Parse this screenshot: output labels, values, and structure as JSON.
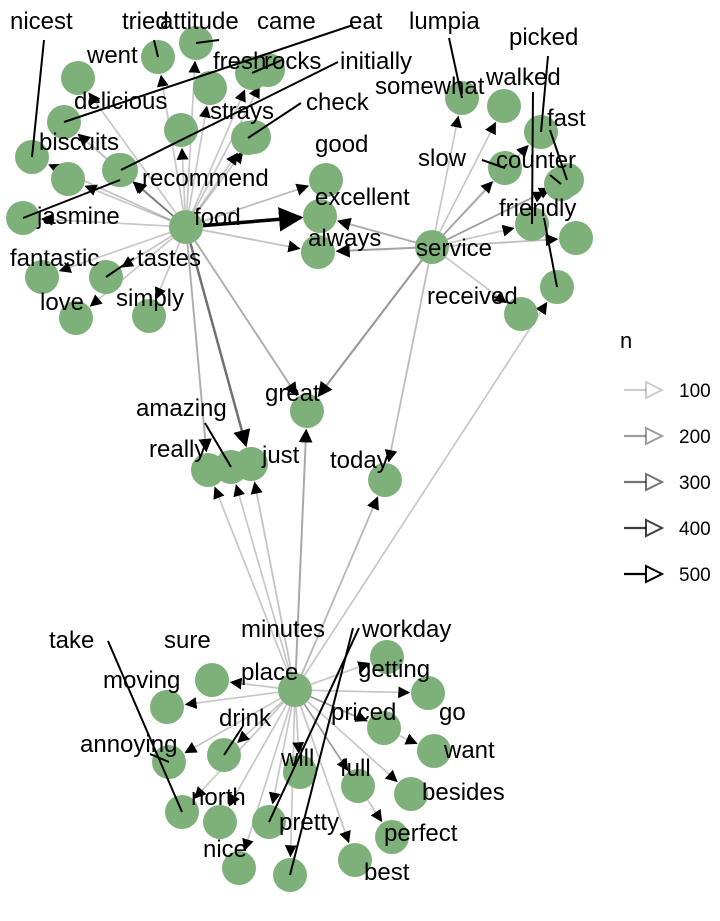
{
  "colors": {
    "node": "#7eb07a",
    "edge": "#000000",
    "text": "#000000",
    "background": "#ffffff"
  },
  "legend": {
    "title": "n",
    "items": [
      {
        "label": "100",
        "n": 100,
        "opacity": 0.2
      },
      {
        "label": "200",
        "n": 200,
        "opacity": 0.38
      },
      {
        "label": "300",
        "n": 300,
        "opacity": 0.55
      },
      {
        "label": "400",
        "n": 400,
        "opacity": 0.75
      },
      {
        "label": "500",
        "n": 500,
        "opacity": 1.0
      }
    ]
  },
  "nodes": [
    {
      "id": "food",
      "label": "food"
    },
    {
      "id": "service",
      "label": "service"
    },
    {
      "id": "great",
      "label": "great"
    },
    {
      "id": "just",
      "label": "just"
    },
    {
      "id": "really",
      "label": "really"
    },
    {
      "id": "amazing",
      "label": "amazing"
    },
    {
      "id": "today",
      "label": "today"
    },
    {
      "id": "place",
      "label": "place"
    },
    {
      "id": "nicest",
      "label": "nicest"
    },
    {
      "id": "tried",
      "label": "tried"
    },
    {
      "id": "attitude",
      "label": "attitude"
    },
    {
      "id": "came",
      "label": "came"
    },
    {
      "id": "eat",
      "label": "eat"
    },
    {
      "id": "went",
      "label": "went"
    },
    {
      "id": "fresh",
      "label": "fresh"
    },
    {
      "id": "rocks",
      "label": "rocks"
    },
    {
      "id": "initially",
      "label": "initially"
    },
    {
      "id": "delicious",
      "label": "delicious"
    },
    {
      "id": "strays",
      "label": "strays"
    },
    {
      "id": "check",
      "label": "check"
    },
    {
      "id": "biscuits",
      "label": "biscuits"
    },
    {
      "id": "recommend",
      "label": "recommend"
    },
    {
      "id": "good",
      "label": "good"
    },
    {
      "id": "excellent",
      "label": "excellent"
    },
    {
      "id": "always",
      "label": "always"
    },
    {
      "id": "jasmine",
      "label": "jasmine"
    },
    {
      "id": "fantastic",
      "label": "fantastic"
    },
    {
      "id": "tastes",
      "label": "tastes"
    },
    {
      "id": "love",
      "label": "love"
    },
    {
      "id": "simply",
      "label": "simply"
    },
    {
      "id": "lumpia",
      "label": "lumpia"
    },
    {
      "id": "somewhat",
      "label": "somewhat"
    },
    {
      "id": "picked",
      "label": "picked"
    },
    {
      "id": "walked",
      "label": "walked"
    },
    {
      "id": "fast",
      "label": "fast"
    },
    {
      "id": "slow",
      "label": "slow"
    },
    {
      "id": "counter",
      "label": "counter"
    },
    {
      "id": "friendly",
      "label": "friendly"
    },
    {
      "id": "received",
      "label": "received"
    },
    {
      "id": "minutes",
      "label": "minutes"
    },
    {
      "id": "workday",
      "label": "workday"
    },
    {
      "id": "take",
      "label": "take"
    },
    {
      "id": "sure",
      "label": "sure"
    },
    {
      "id": "getting",
      "label": "getting"
    },
    {
      "id": "moving",
      "label": "moving"
    },
    {
      "id": "go",
      "label": "go"
    },
    {
      "id": "priced",
      "label": "priced"
    },
    {
      "id": "drink",
      "label": "drink"
    },
    {
      "id": "annoying",
      "label": "annoying"
    },
    {
      "id": "want",
      "label": "want"
    },
    {
      "id": "will",
      "label": "will"
    },
    {
      "id": "full",
      "label": "full"
    },
    {
      "id": "besides",
      "label": "besides"
    },
    {
      "id": "north",
      "label": "north"
    },
    {
      "id": "pretty",
      "label": "pretty"
    },
    {
      "id": "perfect",
      "label": "perfect"
    },
    {
      "id": "nice",
      "label": "nice"
    },
    {
      "id": "best",
      "label": "best"
    }
  ],
  "edges": [
    {
      "from": "food",
      "to": "excellent",
      "n": 500
    },
    {
      "from": "food",
      "to": "good",
      "n": 130
    },
    {
      "from": "food",
      "to": "always",
      "n": 120
    },
    {
      "from": "food",
      "to": "great",
      "n": 160
    },
    {
      "from": "food",
      "to": "just",
      "n": 280
    },
    {
      "from": "food",
      "to": "really",
      "n": 160
    },
    {
      "from": "food",
      "to": "nicest",
      "n": 120
    },
    {
      "from": "food",
      "to": "tried",
      "n": 110
    },
    {
      "from": "food",
      "to": "attitude",
      "n": 110
    },
    {
      "from": "food",
      "to": "came",
      "n": 110
    },
    {
      "from": "food",
      "to": "eat",
      "n": 110
    },
    {
      "from": "food",
      "to": "went",
      "n": 110
    },
    {
      "from": "food",
      "to": "fresh",
      "n": 110
    },
    {
      "from": "food",
      "to": "rocks",
      "n": 110
    },
    {
      "from": "food",
      "to": "initially",
      "n": 110
    },
    {
      "from": "food",
      "to": "delicious",
      "n": 130
    },
    {
      "from": "food",
      "to": "strays",
      "n": 110
    },
    {
      "from": "food",
      "to": "check",
      "n": 110
    },
    {
      "from": "food",
      "to": "biscuits",
      "n": 110
    },
    {
      "from": "food",
      "to": "recommend",
      "n": 110
    },
    {
      "from": "food",
      "to": "jasmine",
      "n": 110
    },
    {
      "from": "food",
      "to": "fantastic",
      "n": 110
    },
    {
      "from": "food",
      "to": "tastes",
      "n": 110
    },
    {
      "from": "food",
      "to": "love",
      "n": 110
    },
    {
      "from": "food",
      "to": "simply",
      "n": 110
    },
    {
      "from": "service",
      "to": "always",
      "n": 180
    },
    {
      "from": "service",
      "to": "excellent",
      "n": 160
    },
    {
      "from": "service",
      "to": "great",
      "n": 200
    },
    {
      "from": "service",
      "to": "today",
      "n": 130
    },
    {
      "from": "service",
      "to": "lumpia",
      "n": 110
    },
    {
      "from": "service",
      "to": "somewhat",
      "n": 110
    },
    {
      "from": "service",
      "to": "picked",
      "n": 110
    },
    {
      "from": "service",
      "to": "walked",
      "n": 110
    },
    {
      "from": "service",
      "to": "fast",
      "n": 110
    },
    {
      "from": "service",
      "to": "slow",
      "n": 110
    },
    {
      "from": "service",
      "to": "counter",
      "n": 110
    },
    {
      "from": "service",
      "to": "friendly",
      "n": 130
    },
    {
      "from": "service",
      "to": "received",
      "n": 110
    },
    {
      "from": "place",
      "to": "great",
      "n": 170
    },
    {
      "from": "place",
      "to": "just",
      "n": 120
    },
    {
      "from": "place",
      "to": "really",
      "n": 110
    },
    {
      "from": "place",
      "to": "amazing",
      "n": 110
    },
    {
      "from": "place",
      "to": "today",
      "n": 140
    },
    {
      "from": "place",
      "to": "take",
      "n": 110
    },
    {
      "from": "place",
      "to": "sure",
      "n": 110
    },
    {
      "from": "place",
      "to": "getting",
      "n": 110
    },
    {
      "from": "place",
      "to": "moving",
      "n": 110
    },
    {
      "from": "place",
      "to": "go",
      "n": 110
    },
    {
      "from": "place",
      "to": "priced",
      "n": 110
    },
    {
      "from": "place",
      "to": "drink",
      "n": 110
    },
    {
      "from": "place",
      "to": "annoying",
      "n": 110
    },
    {
      "from": "place",
      "to": "want",
      "n": 110
    },
    {
      "from": "place",
      "to": "will",
      "n": 110
    },
    {
      "from": "place",
      "to": "full",
      "n": 110
    },
    {
      "from": "place",
      "to": "besides",
      "n": 110
    },
    {
      "from": "place",
      "to": "north",
      "n": 110
    },
    {
      "from": "place",
      "to": "pretty",
      "n": 110
    },
    {
      "from": "place",
      "to": "perfect",
      "n": 110
    },
    {
      "from": "place",
      "to": "nice",
      "n": 110
    },
    {
      "from": "place",
      "to": "best",
      "n": 110
    },
    {
      "from": "place",
      "to": "minutes",
      "n": 110
    },
    {
      "from": "place",
      "to": "workday",
      "n": 110
    }
  ]
}
